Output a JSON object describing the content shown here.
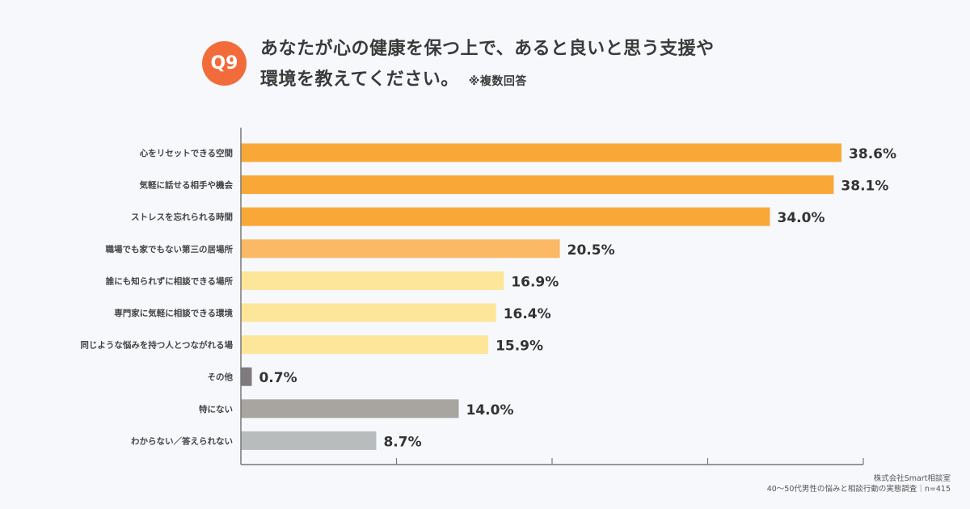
{
  "header": {
    "badge": "Q9",
    "title_line1": "あなたが心の健康を保つ上で、あると良いと思う支援や",
    "title_line2": "環境を教えてください。",
    "note": "※複数回答"
  },
  "source": {
    "line1": "株式会社Smart相談室",
    "line2": "40〜50代男性の悩みと相談行動の実態調査｜n=415"
  },
  "chart_data": {
    "type": "bar",
    "orientation": "horizontal",
    "categories": [
      "心をリセットできる空間",
      "気軽に話せる相手や機会",
      "ストレスを忘れられる時間",
      "職場でも家でもない第三の居場所",
      "誰にも知られずに相談できる場所",
      "専門家に気軽に相談できる環境",
      "同じような悩みを持つ人とつながれる場",
      "その他",
      "特にない",
      "わからない／答えられない"
    ],
    "values": [
      38.6,
      38.1,
      34.0,
      20.5,
      16.9,
      16.4,
      15.9,
      0.7,
      14.0,
      8.7
    ],
    "value_labels": [
      "38.6%",
      "38.1%",
      "34.0%",
      "20.5%",
      "16.9%",
      "16.4%",
      "15.9%",
      "0.7%",
      "14.0%",
      "8.7%"
    ],
    "colors": [
      "#f9a838",
      "#f9a838",
      "#f9a838",
      "#fbb865",
      "#fde59a",
      "#fde59a",
      "#fde59a",
      "#7e7a7d",
      "#a8a5a1",
      "#b9bcbd"
    ],
    "xlim": [
      0,
      40
    ],
    "xticks": [
      0,
      10,
      20,
      30,
      40
    ],
    "grid": false,
    "legend": "none"
  }
}
